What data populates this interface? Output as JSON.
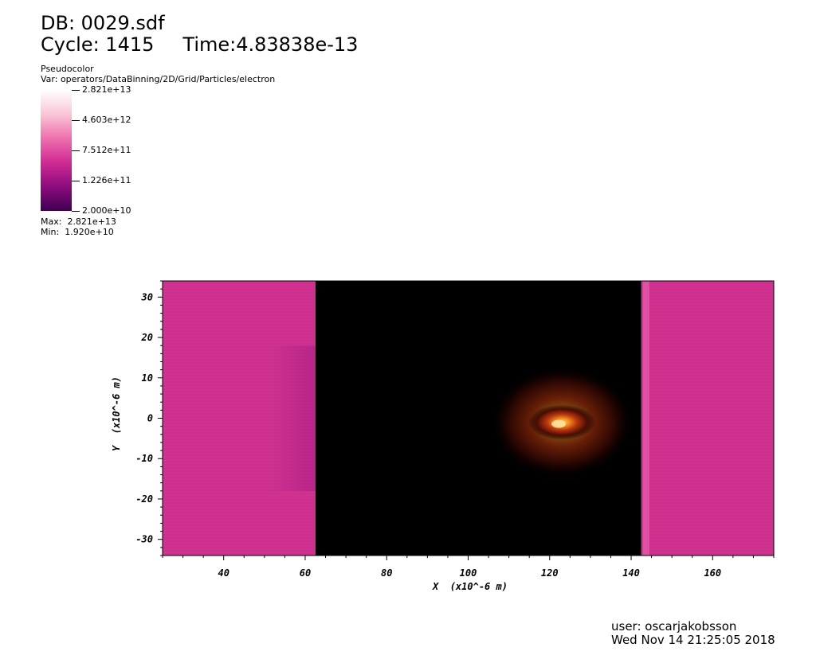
{
  "header": {
    "db": "DB: 0029.sdf",
    "cycle": "Cycle: 1415",
    "time": "Time:4.83838e-13"
  },
  "legend": {
    "plot_type": "Pseudocolor",
    "variable": "Var: operators/DataBinning/2D/Grid/Particles/electron",
    "ticks": [
      "2.821e+13",
      "4.603e+12",
      "7.512e+11",
      "1.226e+11",
      "2.000e+10"
    ],
    "max": "Max:  2.821e+13",
    "min": "Min:  1.920e+10",
    "colormap": [
      "#ffffff",
      "#f9c6d7",
      "#ee70ad",
      "#cf2a93",
      "#8c0c7d",
      "#3e0052"
    ]
  },
  "chart_data": {
    "type": "heatmap",
    "xlabel": "X  (x10^-6 m)",
    "ylabel": "Y  (x10^-6 m)",
    "xlim": [
      25,
      175
    ],
    "ylim": [
      -34,
      34
    ],
    "x_ticks": [
      40,
      60,
      80,
      100,
      120,
      140,
      160
    ],
    "y_ticks": [
      30,
      20,
      10,
      0,
      -10,
      -20,
      -30
    ],
    "regions": [
      {
        "x_range": [
          25,
          62.5
        ],
        "value": "uniform ~7.5e+11",
        "color": "#d0318f"
      },
      {
        "x_range": [
          62.5,
          142.5
        ],
        "value": "below min (black)",
        "color": "#000000"
      },
      {
        "x_range": [
          142.5,
          175
        ],
        "value": "uniform ~7.5e+11",
        "color": "#d0318f"
      }
    ],
    "hotspot": {
      "x": 123,
      "y": -1,
      "color": "#f7941d"
    }
  },
  "footer": {
    "user": "user: oscarjakobsson",
    "date": "Wed Nov 14 21:25:05 2018"
  }
}
